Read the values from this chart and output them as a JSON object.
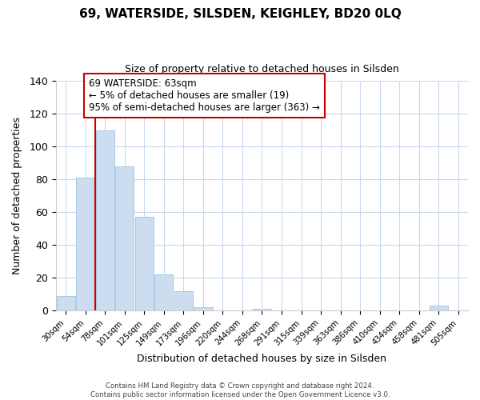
{
  "title": "69, WATERSIDE, SILSDEN, KEIGHLEY, BD20 0LQ",
  "subtitle": "Size of property relative to detached houses in Silsden",
  "xlabel": "Distribution of detached houses by size in Silsden",
  "ylabel": "Number of detached properties",
  "bar_labels": [
    "30sqm",
    "54sqm",
    "78sqm",
    "101sqm",
    "125sqm",
    "149sqm",
    "173sqm",
    "196sqm",
    "220sqm",
    "244sqm",
    "268sqm",
    "291sqm",
    "315sqm",
    "339sqm",
    "363sqm",
    "386sqm",
    "410sqm",
    "434sqm",
    "458sqm",
    "481sqm",
    "505sqm"
  ],
  "bar_values": [
    9,
    81,
    110,
    88,
    57,
    22,
    12,
    2,
    0,
    0,
    1,
    0,
    0,
    0,
    0,
    0,
    0,
    0,
    0,
    3,
    0
  ],
  "bar_color": "#ccddf0",
  "bar_edge_color": "#a8c8e8",
  "ylim": [
    0,
    140
  ],
  "yticks": [
    0,
    20,
    40,
    60,
    80,
    100,
    120,
    140
  ],
  "vline_x_index": 1.5,
  "vline_color": "#cc0000",
  "annotation_text": "69 WATERSIDE: 63sqm\n← 5% of detached houses are smaller (19)\n95% of semi-detached houses are larger (363) →",
  "annotation_box_color": "#ffffff",
  "annotation_box_edge": "#cc0000",
  "footer_line1": "Contains HM Land Registry data © Crown copyright and database right 2024.",
  "footer_line2": "Contains public sector information licensed under the Open Government Licence v3.0.",
  "background_color": "#ffffff",
  "grid_color": "#c8d8ee"
}
